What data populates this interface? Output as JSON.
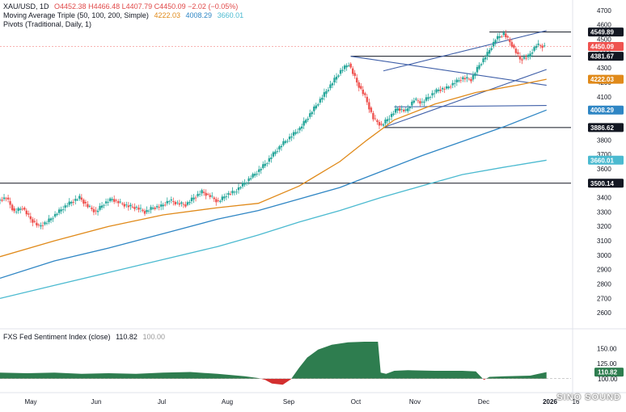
{
  "header": {
    "symbol": "XAU/USD, 1D",
    "ohlc": "O4452.38  H4466.48  L4407.79  C4450.09  −2.02 (−0.05%)",
    "ma_label": "Moving Average Triple (50, 100, 200, Simple)",
    "ma_values": [
      "4222.03",
      "4008.29",
      "3660.01"
    ],
    "pivots_label": "Pivots (Traditional, Daily, 1)"
  },
  "indicator": {
    "label": "FXS Fed Sentiment Index (close)",
    "value": "110.82",
    "base": "100.00"
  },
  "watermark": "SINO SOUND",
  "colors": {
    "up": "#26a69a",
    "down": "#ef5350",
    "ma50": "#e08a1a",
    "ma100": "#2f86c4",
    "ma200": "#4bbad0",
    "channel": "#3f5fa8",
    "sentiment_pos": "#2e7d4f",
    "sentiment_neg": "#d32f2f"
  },
  "chart_data": [
    {
      "type": "line",
      "title": "",
      "ylim": [
        2500,
        4750
      ],
      "y_ticks": [
        4700,
        4600,
        4500,
        4400,
        4300,
        4200,
        4100,
        4000,
        3900,
        3800,
        3700,
        3600,
        3500,
        3400,
        3300,
        3200,
        3100,
        3000,
        2900,
        2800,
        2700,
        2600
      ],
      "x_labels": [
        "May",
        "Jun",
        "Jul",
        "Aug",
        "Sep",
        "Oct",
        "Nov",
        "Dec",
        "2026",
        "16"
      ],
      "price_labels": [
        {
          "value": 4549.89,
          "text": "4549.89",
          "kind": "level"
        },
        {
          "value": 4450.09,
          "text": "4450.09",
          "kind": "last"
        },
        {
          "value": 4381.67,
          "text": "4381.67",
          "kind": "level"
        },
        {
          "value": 4222.03,
          "text": "4222.03",
          "kind": "ma50"
        },
        {
          "value": 4008.29,
          "text": "4008.29",
          "kind": "ma100"
        },
        {
          "value": 3886.62,
          "text": "3886.62",
          "kind": "level"
        },
        {
          "value": 3660.01,
          "text": "3660.01",
          "kind": "ma200"
        },
        {
          "value": 3500.14,
          "text": "3500.14",
          "kind": "level"
        }
      ],
      "price_path": [
        [
          0,
          3380
        ],
        [
          6,
          3400
        ],
        [
          12,
          3300
        ],
        [
          18,
          3330
        ],
        [
          24,
          3250
        ],
        [
          30,
          3200
        ],
        [
          36,
          3230
        ],
        [
          42,
          3280
        ],
        [
          48,
          3330
        ],
        [
          54,
          3370
        ],
        [
          60,
          3400
        ],
        [
          66,
          3340
        ],
        [
          72,
          3300
        ],
        [
          78,
          3360
        ],
        [
          84,
          3390
        ],
        [
          90,
          3360
        ],
        [
          96,
          3340
        ],
        [
          102,
          3330
        ],
        [
          108,
          3300
        ],
        [
          114,
          3330
        ],
        [
          120,
          3340
        ],
        [
          126,
          3380
        ],
        [
          132,
          3360
        ],
        [
          138,
          3350
        ],
        [
          144,
          3400
        ],
        [
          150,
          3440
        ],
        [
          156,
          3410
        ],
        [
          162,
          3370
        ],
        [
          168,
          3420
        ],
        [
          174,
          3440
        ],
        [
          180,
          3490
        ],
        [
          186,
          3540
        ],
        [
          192,
          3590
        ],
        [
          198,
          3650
        ],
        [
          204,
          3720
        ],
        [
          210,
          3780
        ],
        [
          216,
          3830
        ],
        [
          222,
          3880
        ],
        [
          228,
          3960
        ],
        [
          234,
          4040
        ],
        [
          240,
          4120
        ],
        [
          246,
          4200
        ],
        [
          252,
          4280
        ],
        [
          258,
          4330
        ],
        [
          264,
          4200
        ],
        [
          270,
          4100
        ],
        [
          276,
          3950
        ],
        [
          282,
          3900
        ],
        [
          288,
          3960
        ],
        [
          294,
          4020
        ],
        [
          300,
          4000
        ],
        [
          306,
          4080
        ],
        [
          312,
          4060
        ],
        [
          318,
          4110
        ],
        [
          324,
          4150
        ],
        [
          330,
          4160
        ],
        [
          336,
          4200
        ],
        [
          342,
          4230
        ],
        [
          348,
          4220
        ],
        [
          354,
          4320
        ],
        [
          360,
          4400
        ],
        [
          366,
          4500
        ],
        [
          372,
          4540
        ],
        [
          378,
          4460
        ],
        [
          384,
          4360
        ],
        [
          390,
          4380
        ],
        [
          396,
          4460
        ],
        [
          402,
          4450
        ]
      ],
      "total_index": 420,
      "ma50_path": [
        [
          0,
          2990
        ],
        [
          40,
          3100
        ],
        [
          80,
          3200
        ],
        [
          120,
          3280
        ],
        [
          160,
          3330
        ],
        [
          190,
          3360
        ],
        [
          220,
          3480
        ],
        [
          250,
          3650
        ],
        [
          270,
          3800
        ],
        [
          290,
          3940
        ],
        [
          320,
          4050
        ],
        [
          350,
          4130
        ],
        [
          380,
          4180
        ],
        [
          402,
          4222
        ]
      ],
      "ma100_path": [
        [
          0,
          2840
        ],
        [
          40,
          2960
        ],
        [
          80,
          3050
        ],
        [
          120,
          3150
        ],
        [
          160,
          3250
        ],
        [
          190,
          3310
        ],
        [
          220,
          3390
        ],
        [
          250,
          3470
        ],
        [
          280,
          3580
        ],
        [
          310,
          3690
        ],
        [
          340,
          3790
        ],
        [
          370,
          3890
        ],
        [
          402,
          4008
        ]
      ],
      "ma200_path": [
        [
          0,
          2700
        ],
        [
          40,
          2790
        ],
        [
          80,
          2880
        ],
        [
          120,
          2970
        ],
        [
          160,
          3060
        ],
        [
          190,
          3140
        ],
        [
          220,
          3230
        ],
        [
          250,
          3310
        ],
        [
          280,
          3400
        ],
        [
          310,
          3480
        ],
        [
          340,
          3560
        ],
        [
          370,
          3610
        ],
        [
          402,
          3660
        ]
      ],
      "trend_lines": [
        {
          "x1": 258,
          "y1": 4381.67,
          "x2": 402,
          "y2": 4180
        },
        {
          "x1": 282,
          "y1": 4280,
          "x2": 402,
          "y2": 4560
        },
        {
          "x1": 282,
          "y1": 3886.62,
          "x2": 402,
          "y2": 4290
        },
        {
          "x1": 290,
          "y1": 4030,
          "x2": 402,
          "y2": 4040
        }
      ],
      "levels": [
        {
          "value": 3500.14,
          "x_start": 0
        },
        {
          "value": 3886.62,
          "x_start": 282
        },
        {
          "value": 4381.67,
          "x_start": 258
        },
        {
          "value": 4549.89,
          "x_start": 360
        }
      ]
    },
    {
      "type": "area",
      "title": "FXS Fed Sentiment Index (close)",
      "ylim": [
        85,
        165
      ],
      "y_ticks": [
        150.0,
        125.0,
        100.0
      ],
      "baseline": 100.0,
      "series": [
        [
          0,
          110
        ],
        [
          20,
          109
        ],
        [
          40,
          110
        ],
        [
          60,
          108
        ],
        [
          80,
          109
        ],
        [
          100,
          108
        ],
        [
          120,
          110
        ],
        [
          140,
          111
        ],
        [
          160,
          108
        ],
        [
          180,
          104
        ],
        [
          190,
          101
        ],
        [
          195,
          98
        ],
        [
          200,
          92
        ],
        [
          208,
          90
        ],
        [
          214,
          99
        ],
        [
          220,
          118
        ],
        [
          226,
          135
        ],
        [
          234,
          148
        ],
        [
          244,
          156
        ],
        [
          256,
          160
        ],
        [
          268,
          161
        ],
        [
          278,
          161
        ],
        [
          280,
          110
        ],
        [
          284,
          108
        ],
        [
          290,
          113
        ],
        [
          300,
          114
        ],
        [
          320,
          113
        ],
        [
          340,
          113
        ],
        [
          350,
          112
        ],
        [
          356,
          98
        ],
        [
          360,
          103
        ],
        [
          372,
          104
        ],
        [
          390,
          105
        ],
        [
          396,
          108
        ],
        [
          402,
          110.82
        ]
      ]
    }
  ]
}
